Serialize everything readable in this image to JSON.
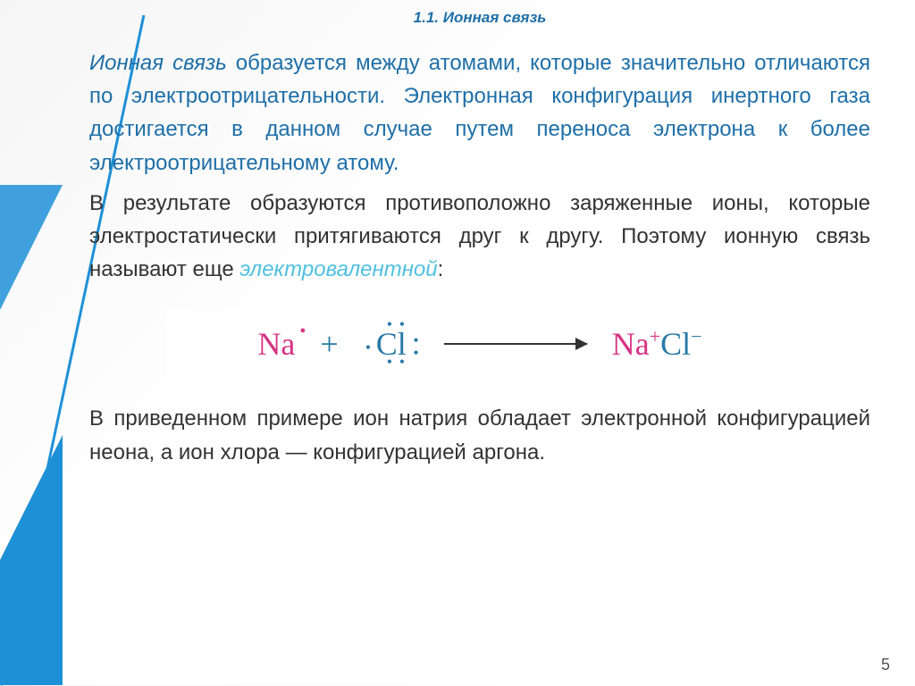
{
  "section_title": "1.1. Ионная связь",
  "para1_lead": "Ионная связь",
  "para1_rest": " образуется между атомами, которые значительно отличаются по электроотрицательности. Электронная конфигурация инертного газа достигается в данном случае путем переноса электрона к более электроотрицательному атому.",
  "para2_a": "В результате образуются противоположно заряженные ионы, которые электростатически притягиваются друг к другу. Поэтому ионную связь называют еще ",
  "para2_term": "электровалентной",
  "para2_b": ":",
  "diagram": {
    "na": "Na",
    "plus": "+",
    "cl": "Cl",
    "na_plus": "Na",
    "na_charge": "+",
    "cl_minus": "Cl",
    "cl_charge": "−"
  },
  "para3": "В приведенном примере ион натрия обладает электронной конфигурацией неона, а ион хлора — конфигурацией аргона.",
  "page_number": "5",
  "colors": {
    "accent": "#1e90d8",
    "heading": "#1e6fa8",
    "term": "#4fc0e0",
    "na": "#d63384",
    "cl": "#2a7aa8"
  }
}
